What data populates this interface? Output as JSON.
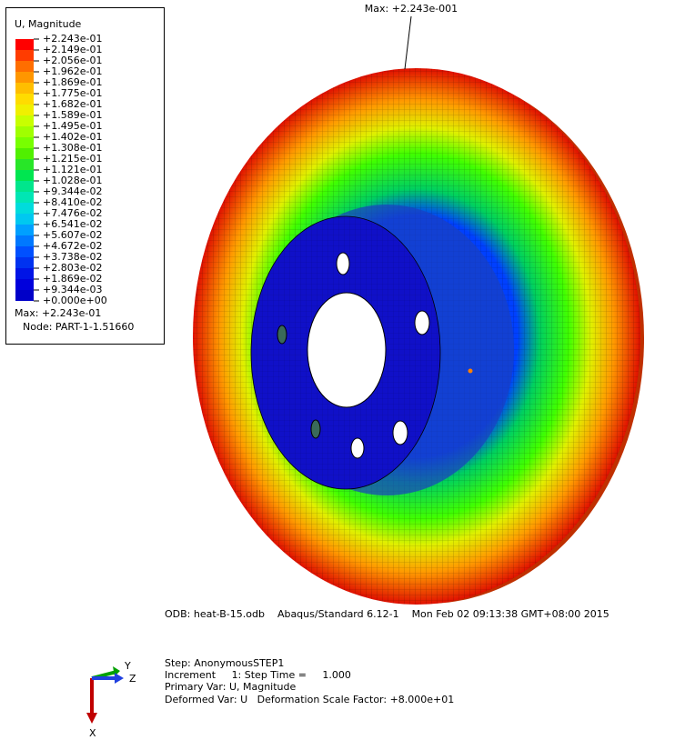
{
  "legend": {
    "title": "U, Magnitude",
    "labels": [
      "+2.243e-01",
      "+2.149e-01",
      "+2.056e-01",
      "+1.962e-01",
      "+1.869e-01",
      "+1.775e-01",
      "+1.682e-01",
      "+1.589e-01",
      "+1.495e-01",
      "+1.402e-01",
      "+1.308e-01",
      "+1.215e-01",
      "+1.121e-01",
      "+1.028e-01",
      "+9.344e-02",
      "+8.410e-02",
      "+7.476e-02",
      "+6.541e-02",
      "+5.607e-02",
      "+4.672e-02",
      "+3.738e-02",
      "+2.803e-02",
      "+1.869e-02",
      "+9.344e-03",
      "+0.000e+00"
    ],
    "colors": [
      "#ff0000",
      "#ff3c00",
      "#ff6e00",
      "#ff9600",
      "#ffbe00",
      "#ffdc00",
      "#f0f000",
      "#c8ff00",
      "#a0ff00",
      "#78ff00",
      "#50f000",
      "#28e628",
      "#00e650",
      "#00e68c",
      "#00e6b4",
      "#00dcdc",
      "#00c8f0",
      "#00a0ff",
      "#0078ff",
      "#0050ff",
      "#0032f0",
      "#0014e6",
      "#0000dc",
      "#0000c8"
    ],
    "max": "Max: +2.243e-01",
    "node": "Node: PART-1-1.51660"
  },
  "viewport": {
    "max_annotation": "Max: +2.243e-001"
  },
  "info": {
    "odb": "ODB: heat-B-15.odb    Abaqus/Standard 6.12-1    Mon Feb 02 09:13:38 GMT+08:00 2015",
    "step": "Step: AnonymousSTEP1",
    "increment": "Increment     1: Step Time =     1.000",
    "primary": "Primary Var: U, Magnitude",
    "deformed": "Deformed Var: U   Deformation Scale Factor: +8.000e+01"
  },
  "triad": {
    "y": "Y",
    "z": "Z",
    "x": "X"
  }
}
